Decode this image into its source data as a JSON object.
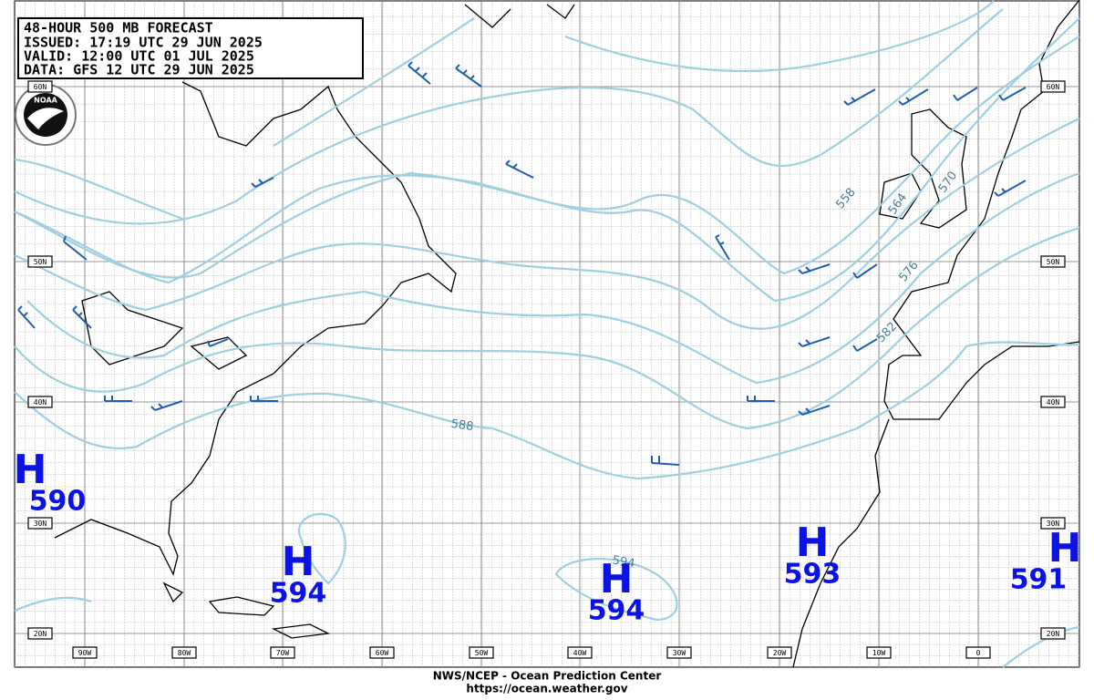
{
  "header": {
    "lines": [
      "48-HOUR 500 MB FORECAST",
      "ISSUED: 17:19 UTC 29 JUN 2025",
      "VALID:  12:00 UTC 01 JUL 2025",
      "DATA:   GFS 12 UTC 29 JUN 2025"
    ]
  },
  "logo": "NOAA",
  "lat_labels": [
    "60N",
    "50N",
    "40N",
    "30N",
    "20N"
  ],
  "lon_labels": [
    "90W",
    "80W",
    "70W",
    "60W",
    "50W",
    "40W",
    "30W",
    "20W",
    "10W",
    "0"
  ],
  "contour_labels": [
    "558",
    "564",
    "570",
    "576",
    "582",
    "588",
    "594"
  ],
  "highs": [
    {
      "symbol": "H",
      "value": "590"
    },
    {
      "symbol": "H",
      "value": "594"
    },
    {
      "symbol": "H",
      "value": "594"
    },
    {
      "symbol": "H",
      "value": "593"
    },
    {
      "symbol": "H",
      "value": "591"
    }
  ],
  "footer": {
    "line1": "NWS/NCEP - Ocean Prediction Center",
    "line2": "https://ocean.weather.gov"
  }
}
